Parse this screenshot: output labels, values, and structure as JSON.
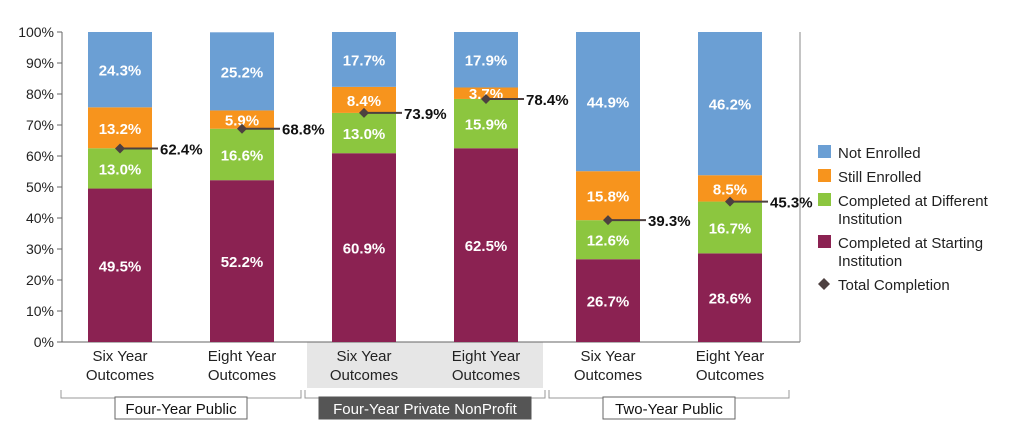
{
  "chart_data": {
    "type": "bar",
    "stacked": true,
    "y_ticks": [
      "0%",
      "10%",
      "20%",
      "30%",
      "40%",
      "50%",
      "60%",
      "70%",
      "80%",
      "90%",
      "100%"
    ],
    "ylim": [
      0,
      100
    ],
    "grid": false,
    "legend_position": "right",
    "categories": [
      {
        "line1": "Six Year",
        "line2": "Outcomes"
      },
      {
        "line1": "Eight Year",
        "line2": "Outcomes"
      },
      {
        "line1": "Six Year",
        "line2": "Outcomes"
      },
      {
        "line1": "Eight Year",
        "line2": "Outcomes"
      },
      {
        "line1": "Six Year",
        "line2": "Outcomes"
      },
      {
        "line1": "Eight Year",
        "line2": "Outcomes"
      }
    ],
    "groups": [
      {
        "label": "Four-Year Public",
        "categories": [
          0,
          1
        ],
        "highlight": false
      },
      {
        "label": "Four-Year Private NonProfit",
        "categories": [
          2,
          3
        ],
        "highlight": true
      },
      {
        "label": "Two-Year Public",
        "categories": [
          4,
          5
        ],
        "highlight": false
      }
    ],
    "series": [
      {
        "name_lines": [
          "Completed at Starting",
          "Institution"
        ],
        "color": "#8b2252",
        "values": [
          49.5,
          52.2,
          60.9,
          62.5,
          26.7,
          28.6
        ],
        "labels": [
          "49.5%",
          "52.2%",
          "60.9%",
          "62.5%",
          "26.7%",
          "28.6%"
        ]
      },
      {
        "name_lines": [
          "Completed at Different",
          "Institution"
        ],
        "color": "#8cc63f",
        "values": [
          13.0,
          16.6,
          13.0,
          15.9,
          12.6,
          16.7
        ],
        "labels": [
          "13.0%",
          "16.6%",
          "13.0%",
          "15.9%",
          "12.6%",
          "16.7%"
        ]
      },
      {
        "name_lines": [
          "Still Enrolled"
        ],
        "color": "#f7941d",
        "values": [
          13.2,
          5.9,
          8.4,
          3.7,
          15.8,
          8.5
        ],
        "labels": [
          "13.2%",
          "5.9%",
          "8.4%",
          "3.7%",
          "15.8%",
          "8.5%"
        ]
      },
      {
        "name_lines": [
          "Not Enrolled"
        ],
        "color": "#6b9fd4",
        "values": [
          24.3,
          25.2,
          17.7,
          17.9,
          44.9,
          46.2
        ],
        "labels": [
          "24.3%",
          "25.2%",
          "17.7%",
          "17.9%",
          "44.9%",
          "46.2%"
        ]
      }
    ],
    "total_completion": {
      "name": "Total Completion",
      "color": "#4d4040",
      "values": [
        62.4,
        68.8,
        73.9,
        78.4,
        39.3,
        45.3
      ],
      "labels": [
        "62.4%",
        "68.8%",
        "73.9%",
        "78.4%",
        "39.3%",
        "45.3%"
      ]
    }
  }
}
